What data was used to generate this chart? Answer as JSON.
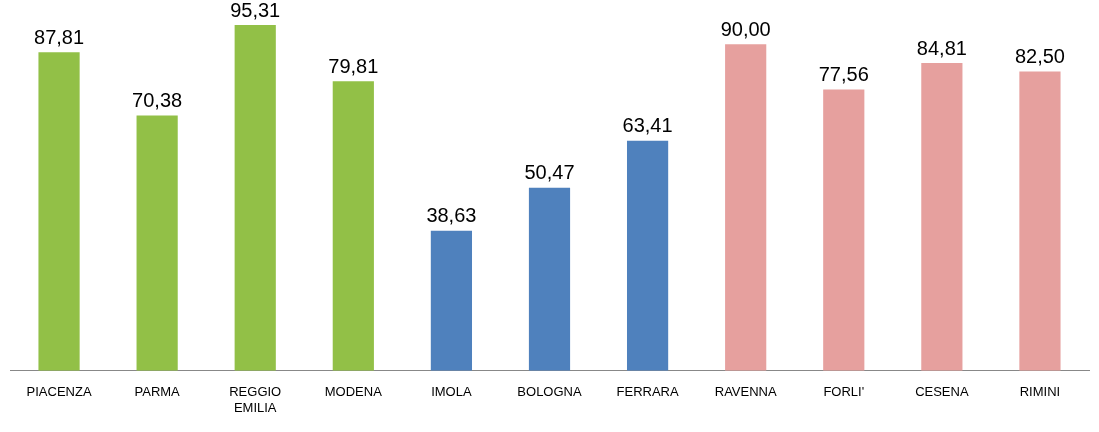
{
  "chart_data": {
    "type": "bar",
    "categories": [
      "PIACENZA",
      "PARMA",
      "REGGIO EMILIA",
      "MODENA",
      "IMOLA",
      "BOLOGNA",
      "FERRARA",
      "RAVENNA",
      "FORLI'",
      "CESENA",
      "RIMINI"
    ],
    "values": [
      87.81,
      70.38,
      95.31,
      79.81,
      38.63,
      50.47,
      63.41,
      90.0,
      77.56,
      84.81,
      82.5
    ],
    "value_labels": [
      "87,81",
      "70,38",
      "95,31",
      "79,81",
      "38,63",
      "50,47",
      "63,41",
      "90,00",
      "77,56",
      "84,81",
      "82,50"
    ],
    "colors": [
      "#92c047",
      "#92c047",
      "#92c047",
      "#92c047",
      "#4f81bd",
      "#4f81bd",
      "#4f81bd",
      "#e6a09e",
      "#e6a09e",
      "#e6a09e",
      "#e6a09e"
    ],
    "grid": false,
    "legend": false,
    "tick_labels": "x"
  }
}
